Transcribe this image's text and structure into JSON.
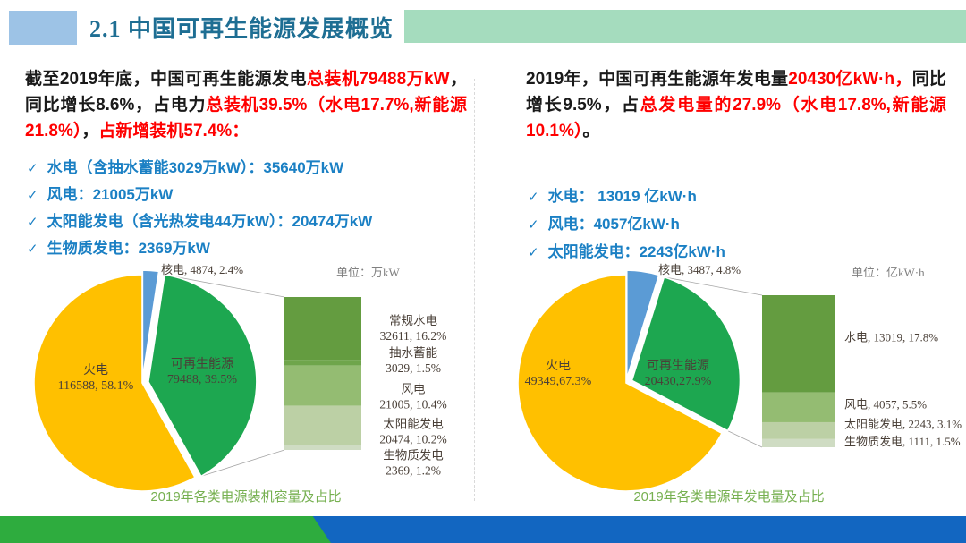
{
  "header": {
    "title": "2.1 中国可再生能源发展概览"
  },
  "check_glyph": "✓",
  "colors": {
    "accent_red": "#FF0000",
    "body_black": "#1a1a1a",
    "bullet_blue": "#1B80C4",
    "title_teal": "#1E6E93",
    "caption_green": "#76B050",
    "header_blue": "#9DC3E6",
    "header_green": "#A5DCBE",
    "footer_blue": "#1266C1",
    "footer_green": "#2EAC3E",
    "pie_thermal_yellow": "#FFC000",
    "pie_renewable_green": "#1DA750",
    "pie_nuclear_blue": "#5B9BD5"
  },
  "left_panel": {
    "paragraph": [
      {
        "text": "截至2019年底，中国可再生能源发电",
        "color": "black"
      },
      {
        "text": "总装机79488万kW",
        "color": "red"
      },
      {
        "text": "，同比增长8.6%，占电力",
        "color": "black"
      },
      {
        "text": "总装机39.5%（水电17.7%,新能源21.8%）",
        "color": "red"
      },
      {
        "text": "，",
        "color": "black"
      },
      {
        "text": "占新增装机57.4%：",
        "color": "red"
      }
    ],
    "bullets": [
      "水电（含抽水蓄能3029万kW）：35640万kW",
      "风电：21005万kW",
      "太阳能发电（含光热发电44万kW）：20474万kW",
      "生物质发电：2369万kW"
    ]
  },
  "right_panel": {
    "paragraph": [
      {
        "text": "2019年，中国可再生能源年发电量",
        "color": "black"
      },
      {
        "text": "20430亿kW·h，",
        "color": "red"
      },
      {
        "text": "同比增长9.5%，占",
        "color": "black"
      },
      {
        "text": "总发电量的27.9%（水电17.8%,新能源10.1%）",
        "color": "red"
      },
      {
        "text": "。",
        "color": "black"
      }
    ],
    "bullets": [
      "水电： 13019 亿kW·h",
      "风电：4057亿kW·h",
      "太阳能发电：2243亿kW·h"
    ]
  },
  "chart_data": [
    {
      "type": "pie",
      "title": "2019年各类电源装机容量及占比",
      "unit_label": "单位：万kW",
      "unit": "万kW",
      "callout_label": "核电, 4874, 2.4%",
      "legend_position": "none",
      "slices": [
        {
          "name": "核电",
          "value": 4874,
          "pct": 2.4,
          "color": "#5B9BD5"
        },
        {
          "name": "可再生能源",
          "value": 79488,
          "pct": 39.5,
          "color": "#1DA750",
          "display": "79488, 39.5%",
          "label_xy": [
            216,
            126
          ]
        },
        {
          "name": "火电",
          "value": 116588,
          "pct": 58.1,
          "color": "#FFC000",
          "display": "116588, 58.1%",
          "label_xy": [
            97,
            133
          ]
        }
      ],
      "breakdown_bar": {
        "total_pct": 39.5,
        "segments": [
          {
            "name": "常规水电",
            "value": 32611,
            "pct": 16.2,
            "color": "#649C40",
            "label_lines": [
              "常规水电",
              "32611, 16.2%"
            ],
            "label_y_frac": 0.2
          },
          {
            "name": "抽水蓄能",
            "value": 3029,
            "pct": 1.5,
            "color": "#6FA54B",
            "label_lines": [
              "抽水蓄能",
              "3029, 1.5%"
            ],
            "label_y_frac": 0.41
          },
          {
            "name": "风电",
            "value": 21005,
            "pct": 10.4,
            "color": "#94BC72",
            "label_lines": [
              "风电",
              "21005, 10.4%"
            ],
            "label_y_frac": 0.645
          },
          {
            "name": "太阳能发电",
            "value": 20474,
            "pct": 10.2,
            "color": "#BCD0A5",
            "label_lines": [
              "太阳能发电",
              "20474, 10.2%"
            ],
            "label_y_frac": 0.875
          },
          {
            "name": "生物质发电",
            "value": 2369,
            "pct": 1.2,
            "color": "#CFDCC3",
            "label_lines": [
              "生物质发电",
              "2369, 1.2%"
            ],
            "label_y_frac": 1.08
          }
        ]
      }
    },
    {
      "type": "pie",
      "title": "2019年各类电源年发电量及占比",
      "unit_label": "单位：亿kW·h",
      "unit": "亿kW·h",
      "callout_label": "核电, 3487, 4.8%",
      "legend_position": "none",
      "slices": [
        {
          "name": "核电",
          "value": 3487,
          "pct": 4.8,
          "color": "#5B9BD5"
        },
        {
          "name": "可再生能源",
          "value": 20430,
          "pct": 27.9,
          "color": "#1DA750",
          "display": "20430,27.9%",
          "label_xy": [
            208,
            128
          ]
        },
        {
          "name": "火电",
          "value": 49349,
          "pct": 67.3,
          "color": "#FFC000",
          "display": "49349,67.3%",
          "label_xy": [
            74,
            128
          ]
        }
      ],
      "breakdown_bar": {
        "total_pct": 27.9,
        "segments": [
          {
            "name": "水电",
            "value": 13019,
            "pct": 17.8,
            "color": "#649C40",
            "label_lines": [
              "水电, 13019, 17.8%"
            ],
            "label_y_frac": 0.28
          },
          {
            "name": "风电",
            "value": 4057,
            "pct": 5.5,
            "color": "#94BC72",
            "label_lines": [
              "风电, 4057, 5.5%"
            ],
            "label_y_frac": 0.72
          },
          {
            "name": "太阳能发电",
            "value": 2243,
            "pct": 3.1,
            "color": "#BCD0A5",
            "label_lines": [
              "太阳能发电, 2243, 3.1%"
            ],
            "label_y_frac": 0.85
          },
          {
            "name": "生物质发电",
            "value": 1111,
            "pct": 1.5,
            "color": "#CFDCC3",
            "label_lines": [
              "生物质发电, 1111, 1.5%"
            ],
            "label_y_frac": 0.965
          }
        ]
      }
    }
  ]
}
